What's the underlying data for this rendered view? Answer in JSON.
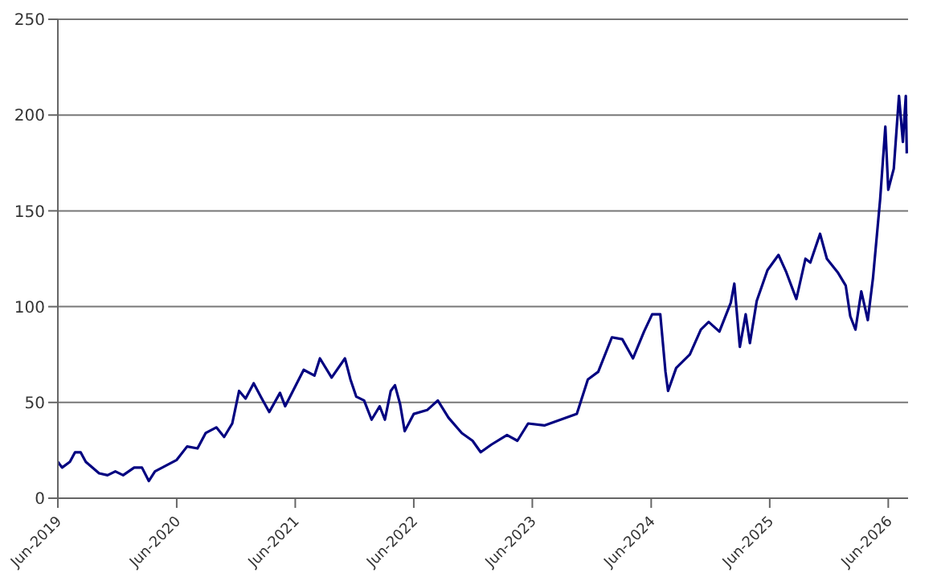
{
  "chart_data": {
    "type": "line",
    "x": [
      "2019-06-01",
      "2019-06-14",
      "2019-07-08",
      "2019-07-24",
      "2019-08-10",
      "2019-08-26",
      "2019-10-06",
      "2019-11-01",
      "2019-11-25",
      "2019-12-19",
      "2020-01-22",
      "2020-02-15",
      "2020-03-07",
      "2020-03-26",
      "2020-06-01",
      "2020-07-03",
      "2020-08-04",
      "2020-08-29",
      "2020-10-01",
      "2020-10-25",
      "2020-11-19",
      "2020-12-10",
      "2020-12-30",
      "2021-01-24",
      "2021-02-18",
      "2021-03-13",
      "2021-04-15",
      "2021-05-01",
      "2021-06-03",
      "2021-06-27",
      "2021-07-30",
      "2021-08-16",
      "2021-09-21",
      "2021-11-01",
      "2021-11-18",
      "2021-12-06",
      "2021-12-30",
      "2022-01-22",
      "2022-02-16",
      "2022-03-04",
      "2022-03-22",
      "2022-04-04",
      "2022-04-20",
      "2022-05-04",
      "2022-06-01",
      "2022-07-12",
      "2022-08-14",
      "2022-09-16",
      "2022-10-27",
      "2022-11-29",
      "2022-12-24",
      "2023-01-26",
      "2023-03-15",
      "2023-04-16",
      "2023-05-19",
      "2023-07-08",
      "2023-08-27",
      "2023-10-16",
      "2023-11-19",
      "2023-12-21",
      "2024-02-01",
      "2024-03-04",
      "2024-04-06",
      "2024-05-10",
      "2024-06-04",
      "2024-06-29",
      "2024-07-15",
      "2024-07-23",
      "2024-08-17",
      "2024-09-28",
      "2024-11-01",
      "2024-11-25",
      "2024-12-28",
      "2025-02-01",
      "2025-02-12",
      "2025-03-01",
      "2025-03-19",
      "2025-04-01",
      "2025-04-22",
      "2025-05-25",
      "2025-06-28",
      "2025-07-22",
      "2025-08-22",
      "2025-09-19",
      "2025-10-04",
      "2025-11-03",
      "2025-11-24",
      "2025-12-27",
      "2026-01-21",
      "2026-02-04",
      "2026-02-20",
      "2026-03-10",
      "2026-03-30",
      "2026-04-15",
      "2026-05-07",
      "2026-05-23",
      "2026-06-01",
      "2026-06-18",
      "2026-07-04",
      "2026-07-16",
      "2026-07-25",
      "2026-07-28"
    ],
    "series": [
      {
        "color": "#000080",
        "values": [
          19,
          16,
          19,
          24,
          24,
          19,
          13,
          12,
          14,
          12,
          16,
          16,
          9,
          14,
          20,
          27,
          26,
          34,
          37,
          32,
          39,
          56,
          52,
          60,
          52,
          45,
          55,
          48,
          59,
          67,
          64,
          73,
          63,
          73,
          62,
          53,
          51,
          41,
          48,
          41,
          56,
          59,
          49,
          35,
          44,
          46,
          51,
          42,
          34,
          30,
          24,
          28,
          33,
          30,
          39,
          38,
          41,
          44,
          62,
          66,
          84,
          83,
          73,
          87,
          96,
          96,
          66,
          56,
          68,
          75,
          88,
          92,
          87,
          102,
          112,
          79,
          96,
          81,
          103,
          119,
          127,
          118,
          104,
          125,
          123,
          138,
          125,
          118,
          111,
          95,
          88,
          108,
          93,
          115,
          156,
          194,
          161,
          172,
          210,
          186,
          210,
          180
        ]
      }
    ],
    "xlim": [
      "2019-06-01",
      "2026-08-01"
    ],
    "xticks": [
      {
        "value": "2019-06-01",
        "label": "Jun-2019"
      },
      {
        "value": "2020-06-01",
        "label": "Jun-2020"
      },
      {
        "value": "2021-06-01",
        "label": "Jun-2021"
      },
      {
        "value": "2022-06-01",
        "label": "Jun-2022"
      },
      {
        "value": "2023-06-01",
        "label": "Jun-2023"
      },
      {
        "value": "2024-06-01",
        "label": "Jun-2024"
      },
      {
        "value": "2025-06-01",
        "label": "Jun-2025"
      },
      {
        "value": "2026-06-01",
        "label": "Jun-2026"
      }
    ],
    "ylim": [
      0,
      250
    ],
    "yticks": [
      0,
      50,
      100,
      150,
      200,
      250
    ],
    "grid": "y",
    "marker": "none",
    "line_style": "solid"
  }
}
